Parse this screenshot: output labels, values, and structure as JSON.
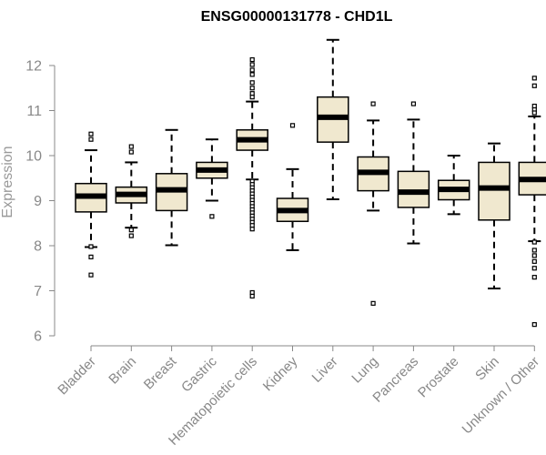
{
  "colors": {
    "box_fill": "#f0e8cf",
    "stroke": "#000000",
    "axis": "#888888",
    "tick_label": "#888888",
    "axis_label": "#999999",
    "title": "#000000"
  },
  "chart_data": {
    "type": "boxplot",
    "title": "ENSG00000131778 - CHD1L",
    "xlabel": "",
    "ylabel": "Expression",
    "ylim": [
      6,
      12.6
    ],
    "yticks": [
      6,
      7,
      8,
      9,
      10,
      11,
      12
    ],
    "grid": false,
    "legend": "none",
    "categories": [
      "Bladder",
      "Brain",
      "Breast",
      "Gastric",
      "Hematopoietic cells",
      "Kidney",
      "Liver",
      "Lung",
      "Pancreas",
      "Prostate",
      "Skin",
      "Unknown / Other"
    ],
    "boxes": [
      {
        "whisker_low": 7.97,
        "q1": 8.75,
        "median": 9.1,
        "q3": 9.38,
        "whisker_high": 10.12,
        "outliers": [
          10.48,
          10.36,
          7.98,
          7.75,
          7.35
        ]
      },
      {
        "whisker_low": 8.4,
        "q1": 8.95,
        "median": 9.14,
        "q3": 9.3,
        "whisker_high": 9.85,
        "outliers": [
          10.2,
          10.08,
          8.35,
          8.22
        ]
      },
      {
        "whisker_low": 8.01,
        "q1": 8.78,
        "median": 9.24,
        "q3": 9.6,
        "whisker_high": 10.57,
        "outliers": []
      },
      {
        "whisker_low": 9.0,
        "q1": 9.5,
        "median": 9.68,
        "q3": 9.85,
        "whisker_high": 10.36,
        "outliers": [
          8.65
        ]
      },
      {
        "whisker_low": 9.47,
        "q1": 10.12,
        "median": 10.35,
        "q3": 10.57,
        "whisker_high": 11.2,
        "outliers": [
          12.13,
          12.02,
          11.9,
          11.8,
          11.62,
          11.5,
          11.38,
          11.3,
          9.43,
          9.36,
          9.29,
          9.22,
          9.15,
          9.08,
          9.01,
          8.94,
          8.87,
          8.8,
          8.73,
          8.66,
          8.59,
          8.52,
          8.45,
          8.37,
          6.96,
          6.88
        ]
      },
      {
        "whisker_low": 7.9,
        "q1": 8.54,
        "median": 8.78,
        "q3": 9.05,
        "whisker_high": 9.7,
        "outliers": [
          10.67
        ]
      },
      {
        "whisker_low": 9.03,
        "q1": 10.3,
        "median": 10.85,
        "q3": 11.3,
        "whisker_high": 12.57,
        "outliers": []
      },
      {
        "whisker_low": 8.78,
        "q1": 9.22,
        "median": 9.63,
        "q3": 9.97,
        "whisker_high": 10.78,
        "outliers": [
          11.15,
          6.72
        ]
      },
      {
        "whisker_low": 8.05,
        "q1": 8.85,
        "median": 9.19,
        "q3": 9.65,
        "whisker_high": 10.8,
        "outliers": [
          11.15
        ]
      },
      {
        "whisker_low": 8.7,
        "q1": 9.02,
        "median": 9.25,
        "q3": 9.45,
        "whisker_high": 10.0,
        "outliers": []
      },
      {
        "whisker_low": 7.05,
        "q1": 8.57,
        "median": 9.28,
        "q3": 9.85,
        "whisker_high": 10.27,
        "outliers": []
      },
      {
        "whisker_low": 8.1,
        "q1": 9.13,
        "median": 9.47,
        "q3": 9.85,
        "whisker_high": 10.87,
        "outliers": [
          11.72,
          11.55,
          11.1,
          11.02,
          10.95,
          8.08,
          7.9,
          7.78,
          7.65,
          7.5,
          7.3,
          6.25
        ]
      }
    ]
  }
}
